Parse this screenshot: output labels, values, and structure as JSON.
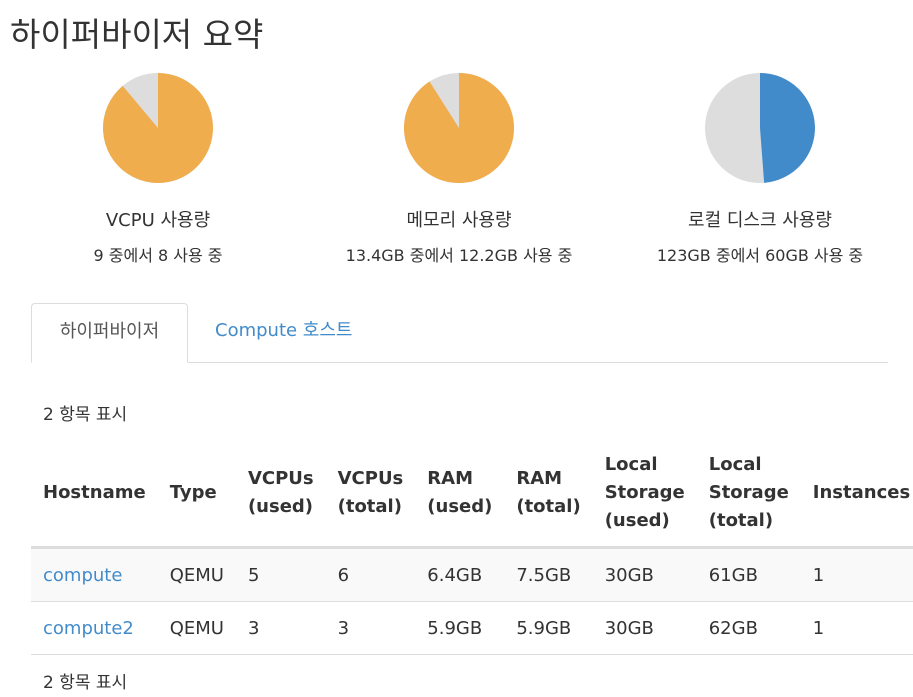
{
  "page": {
    "title": "하이퍼바이저 요약"
  },
  "colors": {
    "used": "#f0ad4e",
    "free": "#dddddd",
    "accent": "#428bca"
  },
  "pies": [
    {
      "title": "VCPU 사용량",
      "subtitle": "9 중에서 8 사용 중",
      "used_fraction": 0.889,
      "used_color": "#f0ad4e"
    },
    {
      "title": "메모리 사용량",
      "subtitle": "13.4GB 중에서 12.2GB 사용 중",
      "used_fraction": 0.91,
      "used_color": "#f0ad4e"
    },
    {
      "title": "로컬 디스크 사용량",
      "subtitle": "123GB 중에서 60GB 사용 중",
      "used_fraction": 0.488,
      "used_color": "#428bca"
    }
  ],
  "tabs": [
    {
      "label": "하이퍼바이저",
      "active": true
    },
    {
      "label": "Compute 호스트",
      "active": false
    }
  ],
  "table": {
    "count_label": "2 항목 표시",
    "headers": [
      "Hostname",
      "Type",
      "VCPUs (used)",
      "VCPUs (total)",
      "RAM (used)",
      "RAM (total)",
      "Local Storage (used)",
      "Local Storage (total)",
      "Instances"
    ],
    "rows": [
      [
        "compute",
        "QEMU",
        "5",
        "6",
        "6.4GB",
        "7.5GB",
        "30GB",
        "61GB",
        "1"
      ],
      [
        "compute2",
        "QEMU",
        "3",
        "3",
        "5.9GB",
        "5.9GB",
        "30GB",
        "62GB",
        "1"
      ]
    ]
  }
}
